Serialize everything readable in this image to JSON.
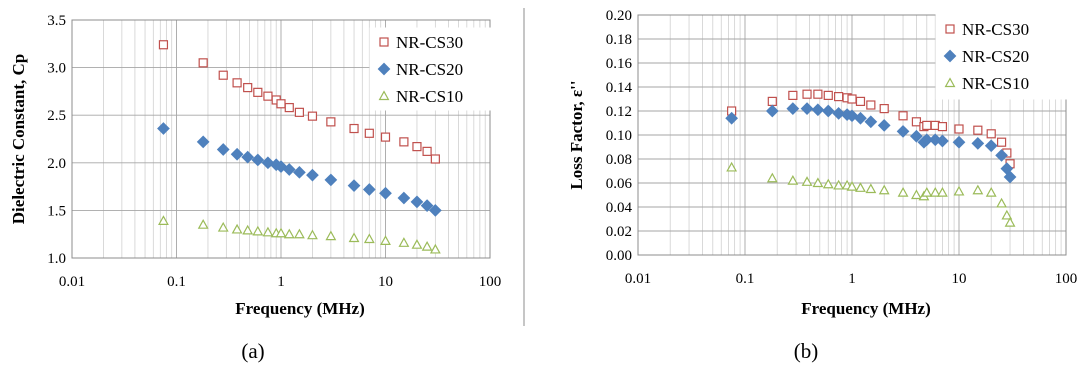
{
  "chart_data": [
    {
      "type": "scatter",
      "panel_label": "(a)",
      "xlabel": "Frequency (MHz)",
      "ylabel": "Dielectric Constant, Cp",
      "xscale": "log",
      "xlim": [
        0.01,
        100
      ],
      "ylim": [
        1.0,
        3.5
      ],
      "x_ticks": [
        "0.01",
        "0.1",
        "1",
        "10",
        "100"
      ],
      "y_ticks": [
        "1.0",
        "1.5",
        "2.0",
        "2.5",
        "3.0",
        "3.5"
      ],
      "grid": "major and minor vertical, major horizontal",
      "legend_position": "top-right",
      "series": [
        {
          "name": "NR-CS30",
          "marker": "open-square",
          "color": "#c0504d",
          "x": [
            0.075,
            0.18,
            0.28,
            0.38,
            0.48,
            0.6,
            0.75,
            0.9,
            1.0,
            1.2,
            1.5,
            2,
            3,
            5,
            7,
            10,
            15,
            20,
            25,
            30
          ],
          "y": [
            3.24,
            3.05,
            2.92,
            2.84,
            2.79,
            2.74,
            2.7,
            2.66,
            2.62,
            2.58,
            2.53,
            2.49,
            2.43,
            2.36,
            2.31,
            2.27,
            2.22,
            2.17,
            2.12,
            2.04
          ]
        },
        {
          "name": "NR-CS20",
          "marker": "filled-diamond",
          "color": "#4f81bd",
          "x": [
            0.075,
            0.18,
            0.28,
            0.38,
            0.48,
            0.6,
            0.75,
            0.9,
            1.0,
            1.2,
            1.5,
            2,
            3,
            5,
            7,
            10,
            15,
            20,
            25,
            30
          ],
          "y": [
            2.36,
            2.22,
            2.14,
            2.09,
            2.06,
            2.03,
            2.0,
            1.98,
            1.96,
            1.93,
            1.9,
            1.87,
            1.82,
            1.76,
            1.72,
            1.68,
            1.63,
            1.59,
            1.55,
            1.5
          ]
        },
        {
          "name": "NR-CS10",
          "marker": "open-triangle",
          "color": "#9bbb59",
          "x": [
            0.075,
            0.18,
            0.28,
            0.38,
            0.48,
            0.6,
            0.75,
            0.9,
            1.0,
            1.2,
            1.5,
            2,
            3,
            5,
            7,
            10,
            15,
            20,
            25,
            30
          ],
          "y": [
            1.39,
            1.35,
            1.32,
            1.3,
            1.29,
            1.28,
            1.27,
            1.26,
            1.26,
            1.25,
            1.25,
            1.24,
            1.23,
            1.21,
            1.2,
            1.18,
            1.16,
            1.14,
            1.12,
            1.09
          ]
        }
      ]
    },
    {
      "type": "scatter",
      "panel_label": "(b)",
      "xlabel": "Frequency (MHz)",
      "ylabel": "Loss Factor, ε''",
      "xscale": "log",
      "xlim": [
        0.01,
        100
      ],
      "ylim": [
        0.0,
        0.2
      ],
      "x_ticks": [
        "0.01",
        "0.1",
        "1",
        "10",
        "100"
      ],
      "y_ticks": [
        "0.00",
        "0.02",
        "0.04",
        "0.06",
        "0.08",
        "0.10",
        "0.12",
        "0.14",
        "0.16",
        "0.18",
        "0.20"
      ],
      "grid": "major and minor vertical, major horizontal",
      "legend_position": "top-right",
      "series": [
        {
          "name": "NR-CS30",
          "marker": "open-square",
          "color": "#c0504d",
          "x": [
            0.075,
            0.18,
            0.28,
            0.38,
            0.48,
            0.6,
            0.75,
            0.9,
            1.0,
            1.2,
            1.5,
            2,
            3,
            4,
            4.7,
            5,
            6,
            7,
            10,
            15,
            20,
            25,
            28,
            30
          ],
          "y": [
            0.12,
            0.128,
            0.133,
            0.134,
            0.134,
            0.133,
            0.132,
            0.131,
            0.13,
            0.128,
            0.125,
            0.122,
            0.116,
            0.111,
            0.107,
            0.108,
            0.108,
            0.107,
            0.105,
            0.104,
            0.101,
            0.094,
            0.085,
            0.076
          ]
        },
        {
          "name": "NR-CS20",
          "marker": "filled-diamond",
          "color": "#4f81bd",
          "x": [
            0.075,
            0.18,
            0.28,
            0.38,
            0.48,
            0.6,
            0.75,
            0.9,
            1.0,
            1.2,
            1.5,
            2,
            3,
            4,
            4.7,
            5,
            6,
            7,
            10,
            15,
            20,
            25,
            28,
            30
          ],
          "y": [
            0.114,
            0.12,
            0.122,
            0.122,
            0.121,
            0.12,
            0.118,
            0.117,
            0.116,
            0.114,
            0.111,
            0.108,
            0.103,
            0.099,
            0.094,
            0.096,
            0.096,
            0.095,
            0.094,
            0.093,
            0.091,
            0.083,
            0.072,
            0.065
          ]
        },
        {
          "name": "NR-CS10",
          "marker": "open-triangle",
          "color": "#9bbb59",
          "x": [
            0.075,
            0.18,
            0.28,
            0.38,
            0.48,
            0.6,
            0.75,
            0.9,
            1.0,
            1.2,
            1.5,
            2,
            3,
            4,
            4.7,
            5,
            6,
            7,
            10,
            15,
            20,
            25,
            28,
            30
          ],
          "y": [
            0.073,
            0.064,
            0.062,
            0.061,
            0.06,
            0.059,
            0.058,
            0.058,
            0.057,
            0.056,
            0.055,
            0.054,
            0.052,
            0.05,
            0.049,
            0.052,
            0.052,
            0.052,
            0.053,
            0.054,
            0.052,
            0.043,
            0.033,
            0.027
          ]
        }
      ]
    }
  ]
}
